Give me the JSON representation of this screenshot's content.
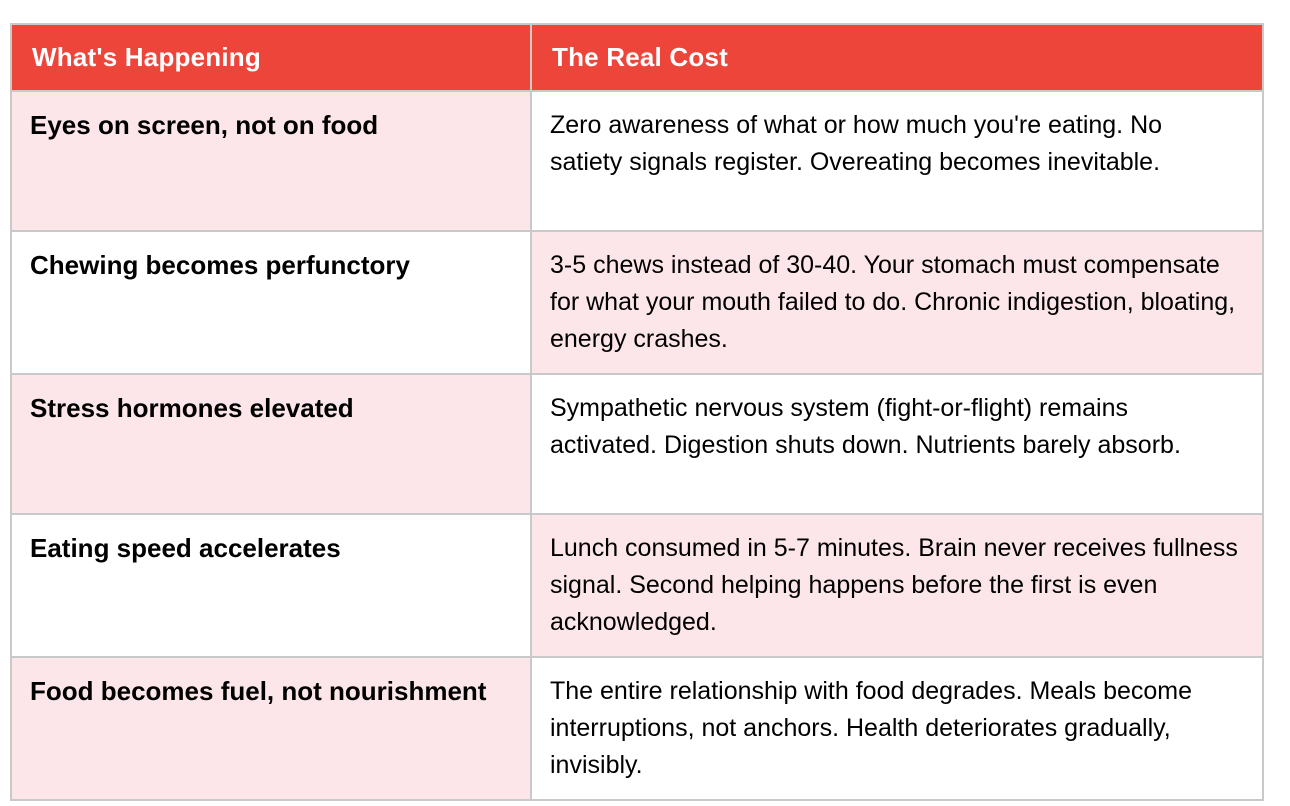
{
  "table": {
    "columns": [
      {
        "label": "What's Happening"
      },
      {
        "label": "The Real Cost"
      }
    ],
    "rows": [
      {
        "what": "Eyes on screen, not on food",
        "cost": "Zero awareness of what or how much you're eating. No satiety signals register. Overeating becomes inevitable."
      },
      {
        "what": "Chewing becomes perfunctory",
        "cost": "3-5 chews instead of 30-40. Your stomach must compensate for what your mouth failed to do. Chronic indigestion, bloating, energy crashes."
      },
      {
        "what": "Stress hormones elevated",
        "cost": "Sympathetic nervous system (fight-or-flight) remains activated. Digestion shuts down. Nutrients barely absorb."
      },
      {
        "what": "Eating speed accelerates",
        "cost": "Lunch consumed in 5-7 minutes. Brain never receives fullness signal. Second helping happens before the first is even acknowledged."
      },
      {
        "what": "Food becomes fuel, not nourishment",
        "cost": "The entire relationship with food degrades. Meals become interruptions, not anchors. Health deteriorates gradually, invisibly."
      }
    ]
  },
  "colors": {
    "header_bg": "#ee453b",
    "header_text": "#ffffff",
    "cell_pink": "#fce6e9",
    "cell_white": "#ffffff",
    "border": "#c9c9c9",
    "body_text": "#000000"
  }
}
